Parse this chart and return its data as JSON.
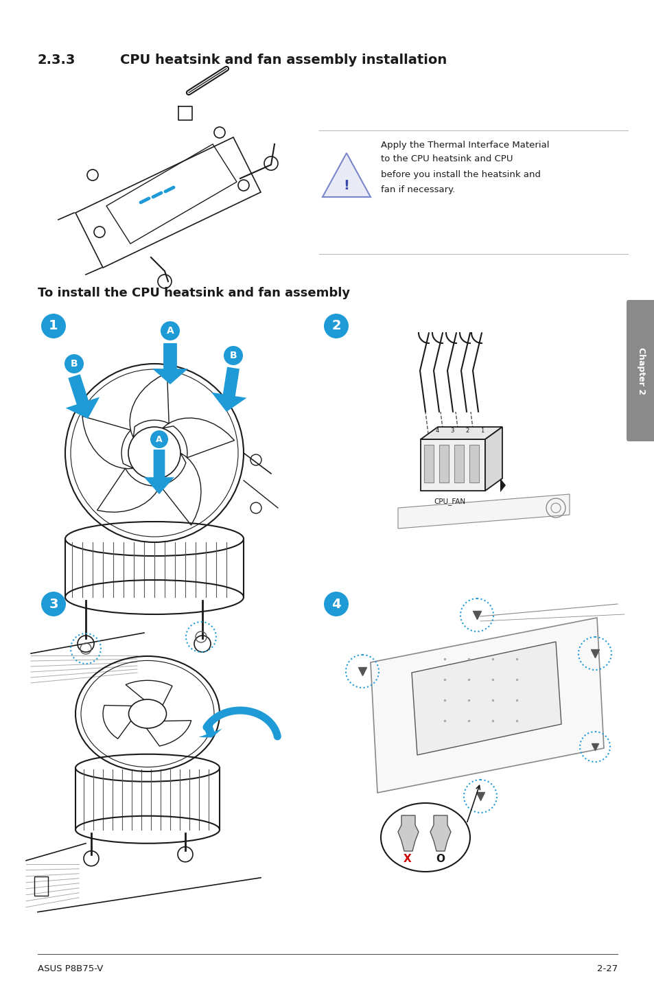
{
  "bg_color": "#ffffff",
  "page_width": 9.54,
  "page_height": 14.38,
  "dpi": 100,
  "title_section": "2.3.3",
  "title_text": "CPU heatsink and fan assembly installation",
  "subtitle": "To install the CPU heatsink and fan assembly",
  "warning_line1": "Apply the Thermal Interface Material",
  "warning_line2": "to the CPU heatsink and CPU",
  "warning_line3": "before you install the heatsink and",
  "warning_line4": "fan if necessary.",
  "footer_left": "ASUS P8B75-V",
  "footer_right": "2-27",
  "chapter_tab": "Chapter 2",
  "blue": "#1E9BD7",
  "tab_bg": "#8a8a8a",
  "gray": "#888888",
  "black": "#1a1a1a",
  "red": "#cc0000"
}
